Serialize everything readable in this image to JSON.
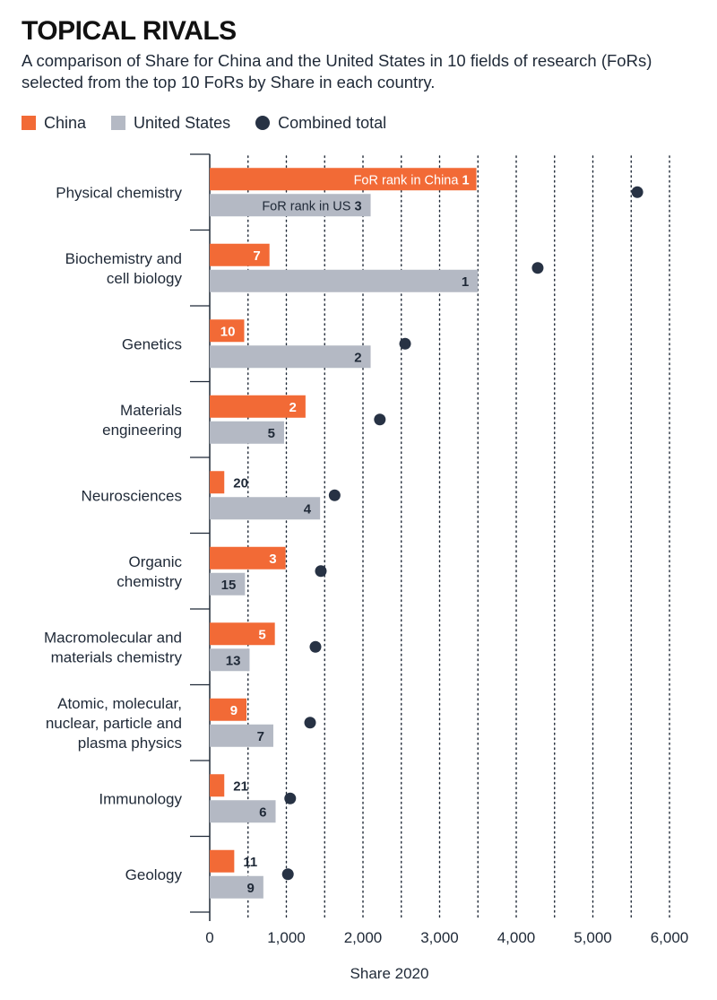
{
  "title": "TOPICAL RIVALS",
  "subtitle": "A comparison of Share for China and the United States in 10 fields of research (FoRs) selected from the top 10 FoRs by Share in each country.",
  "legend": {
    "china": "China",
    "us": "United States",
    "combined": "Combined total"
  },
  "colors": {
    "china": "#f26a36",
    "us": "#b4b9c4",
    "combined": "#273244",
    "axis": "#1f2937"
  },
  "chart_data": {
    "type": "bar",
    "orientation": "horizontal",
    "xlabel": "Share 2020",
    "xlim": [
      0,
      6000
    ],
    "xticks": [
      0,
      1000,
      2000,
      3000,
      4000,
      5000,
      6000
    ],
    "xtick_labels": [
      "0",
      "1,000",
      "2,000",
      "3,000",
      "4,000",
      "5,000",
      "6,000"
    ],
    "grid": "dotted vertical",
    "categories": [
      [
        "Physical chemistry"
      ],
      [
        "Biochemistry and",
        "cell biology"
      ],
      [
        "Genetics"
      ],
      [
        "Materials",
        "engineering"
      ],
      [
        "Neurosciences"
      ],
      [
        "Organic",
        "chemistry"
      ],
      [
        "Macromolecular and",
        "materials chemistry"
      ],
      [
        "Atomic, molecular,",
        "nuclear, particle and",
        "plasma physics"
      ],
      [
        "Immunology"
      ],
      [
        "Geology"
      ]
    ],
    "series": [
      {
        "name": "China",
        "values": [
          3480,
          780,
          450,
          1250,
          190,
          990,
          850,
          480,
          190,
          320
        ],
        "ranks": [
          "1",
          "7",
          "10",
          "2",
          "20",
          "3",
          "5",
          "9",
          "21",
          "11"
        ]
      },
      {
        "name": "United States",
        "values": [
          2100,
          3500,
          2100,
          970,
          1440,
          460,
          520,
          830,
          860,
          700
        ],
        "ranks": [
          "3",
          "1",
          "2",
          "5",
          "4",
          "15",
          "13",
          "7",
          "6",
          "9"
        ]
      },
      {
        "name": "Combined total",
        "values": [
          5580,
          4280,
          2550,
          2220,
          1630,
          1450,
          1380,
          1310,
          1050,
          1020
        ]
      }
    ],
    "annotations": {
      "china_rank_prefix": "FoR rank in China ",
      "us_rank_prefix": "FoR rank in US "
    }
  }
}
